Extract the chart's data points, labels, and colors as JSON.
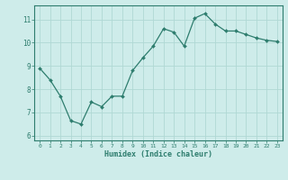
{
  "x": [
    0,
    1,
    2,
    3,
    4,
    5,
    6,
    7,
    8,
    9,
    10,
    11,
    12,
    13,
    14,
    15,
    16,
    17,
    18,
    19,
    20,
    21,
    22,
    23
  ],
  "y": [
    8.9,
    8.4,
    7.7,
    6.65,
    6.5,
    7.45,
    7.25,
    7.7,
    7.7,
    8.8,
    9.35,
    9.85,
    10.6,
    10.45,
    9.85,
    11.05,
    11.25,
    10.8,
    10.5,
    10.5,
    10.35,
    10.2,
    10.1,
    10.05
  ],
  "xlabel": "Humidex (Indice chaleur)",
  "bg_color": "#ceecea",
  "line_color": "#2e7d6e",
  "marker_color": "#2e7d6e",
  "grid_color": "#b0d8d4",
  "ylim": [
    5.8,
    11.6
  ],
  "yticks": [
    6,
    7,
    8,
    9,
    10,
    11
  ],
  "ytick_labels": [
    "6",
    "7",
    "8",
    "9",
    "10",
    "11"
  ],
  "xticks": [
    0,
    1,
    2,
    3,
    4,
    5,
    6,
    7,
    8,
    9,
    10,
    11,
    12,
    13,
    14,
    15,
    16,
    17,
    18,
    19,
    20,
    21,
    22,
    23
  ],
  "xtick_labels": [
    "0",
    "1",
    "2",
    "3",
    "4",
    "5",
    "6",
    "7",
    "8",
    "9",
    "10",
    "11",
    "12",
    "13",
    "14",
    "15",
    "16",
    "17",
    "18",
    "19",
    "20",
    "21",
    "22",
    "23"
  ]
}
